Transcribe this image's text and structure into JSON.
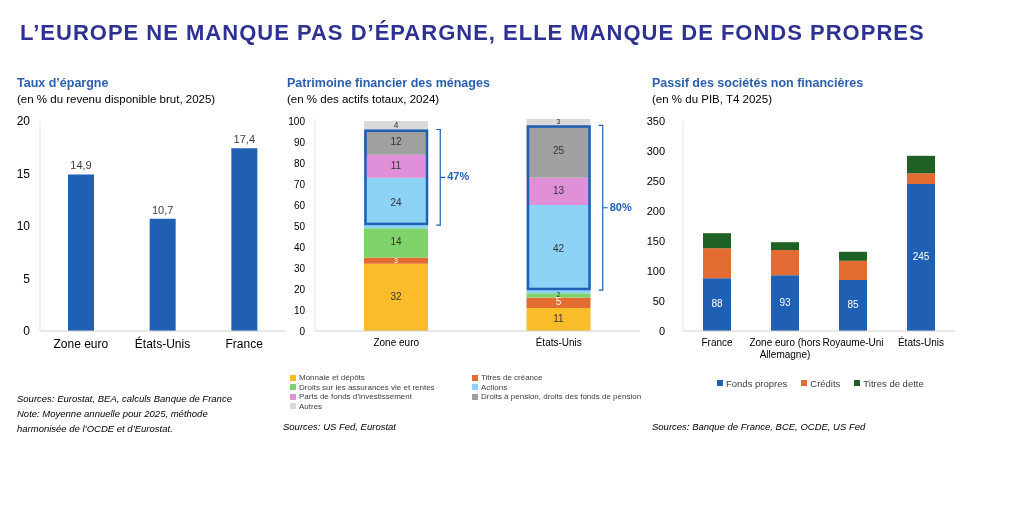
{
  "chart_data": [
    {
      "type": "other",
      "title": "L’EUROPE NE MANQUE PAS D’ÉPARGNE, ELLE MANQUE DE FONDS PROPRES"
    },
    {
      "type": "bar",
      "title": "Taux d’épargne",
      "subtitle": "(en % du revenu disponible brut, 2025)",
      "categories": [
        "Zone euro",
        "États-Unis",
        "France"
      ],
      "values": [
        14.9,
        10.7,
        17.4
      ],
      "value_labels": [
        "14,9",
        "10,7",
        "17,4"
      ],
      "color": "#1f5fb4",
      "ylim": [
        0,
        20
      ],
      "yticks": [
        0,
        5,
        10,
        15,
        20
      ],
      "annotations": [
        "Sources: Eurostat, BEA, calculs Banque de France",
        "Note: Moyenne annuelle pour 2025, méthode harmonisée de l’OCDE et d’Eurostat."
      ]
    },
    {
      "type": "bar",
      "stacked": true,
      "title": "Patrimoine financier des ménages",
      "subtitle": "(en % des actifs totaux, 2024)",
      "categories": [
        "Zone euro",
        "États-Unis"
      ],
      "series": [
        {
          "name": "Monnaie et dépôts",
          "color": "#fbbc2a",
          "values": [
            32,
            11
          ]
        },
        {
          "name": "Titres de créance",
          "color": "#e36c33",
          "values": [
            3,
            5
          ]
        },
        {
          "name": "Droits sur les assurances vie et rentes",
          "color": "#7fd36b",
          "values": [
            14,
            2
          ]
        },
        {
          "name": "Actions",
          "color": "#8dd3f5",
          "values": [
            24,
            42
          ]
        },
        {
          "name": "Parts de fonds d’investissement",
          "color": "#e090d8",
          "values": [
            11,
            13
          ]
        },
        {
          "name": "Droits à pension, droits des fonds de pension",
          "color": "#a0a0a0",
          "values": [
            12,
            25
          ]
        },
        {
          "name": "Autres",
          "color": "#d9d9d9",
          "values": [
            4,
            3
          ]
        }
      ],
      "data_labels": true,
      "ylim": [
        0,
        101
      ],
      "yticks": [
        0,
        10,
        20,
        30,
        40,
        50,
        60,
        70,
        80,
        90,
        100
      ],
      "legend": "bottom",
      "annotations": [
        "Sources: US Fed, Eurostat",
        "47%",
        "80%"
      ]
    },
    {
      "type": "bar",
      "stacked": true,
      "title": "Passif des sociétés non financières",
      "subtitle": "(en % du PIB, T4 2025)",
      "categories": [
        "France",
        "Zone euro (hors Allemagne)",
        "Royaume-Uni",
        "États-Unis"
      ],
      "series": [
        {
          "name": "Fonds propres",
          "color": "#1f5fb4",
          "values": [
            88,
            93,
            85,
            245
          ],
          "value_labels": [
            "88",
            "93",
            "85",
            "245"
          ]
        },
        {
          "name": "Crédits",
          "color": "#e36c33",
          "values": [
            50,
            42,
            32,
            18
          ]
        },
        {
          "name": "Titres de dette",
          "color": "#1e6124",
          "values": [
            25,
            13,
            15,
            29
          ]
        }
      ],
      "ylim": [
        0,
        350
      ],
      "yticks": [
        0,
        50,
        100,
        150,
        200,
        250,
        300,
        350
      ],
      "legend": "bottom",
      "annotations": [
        "Sources: Banque de France, BCE, OCDE, US Fed"
      ]
    }
  ]
}
